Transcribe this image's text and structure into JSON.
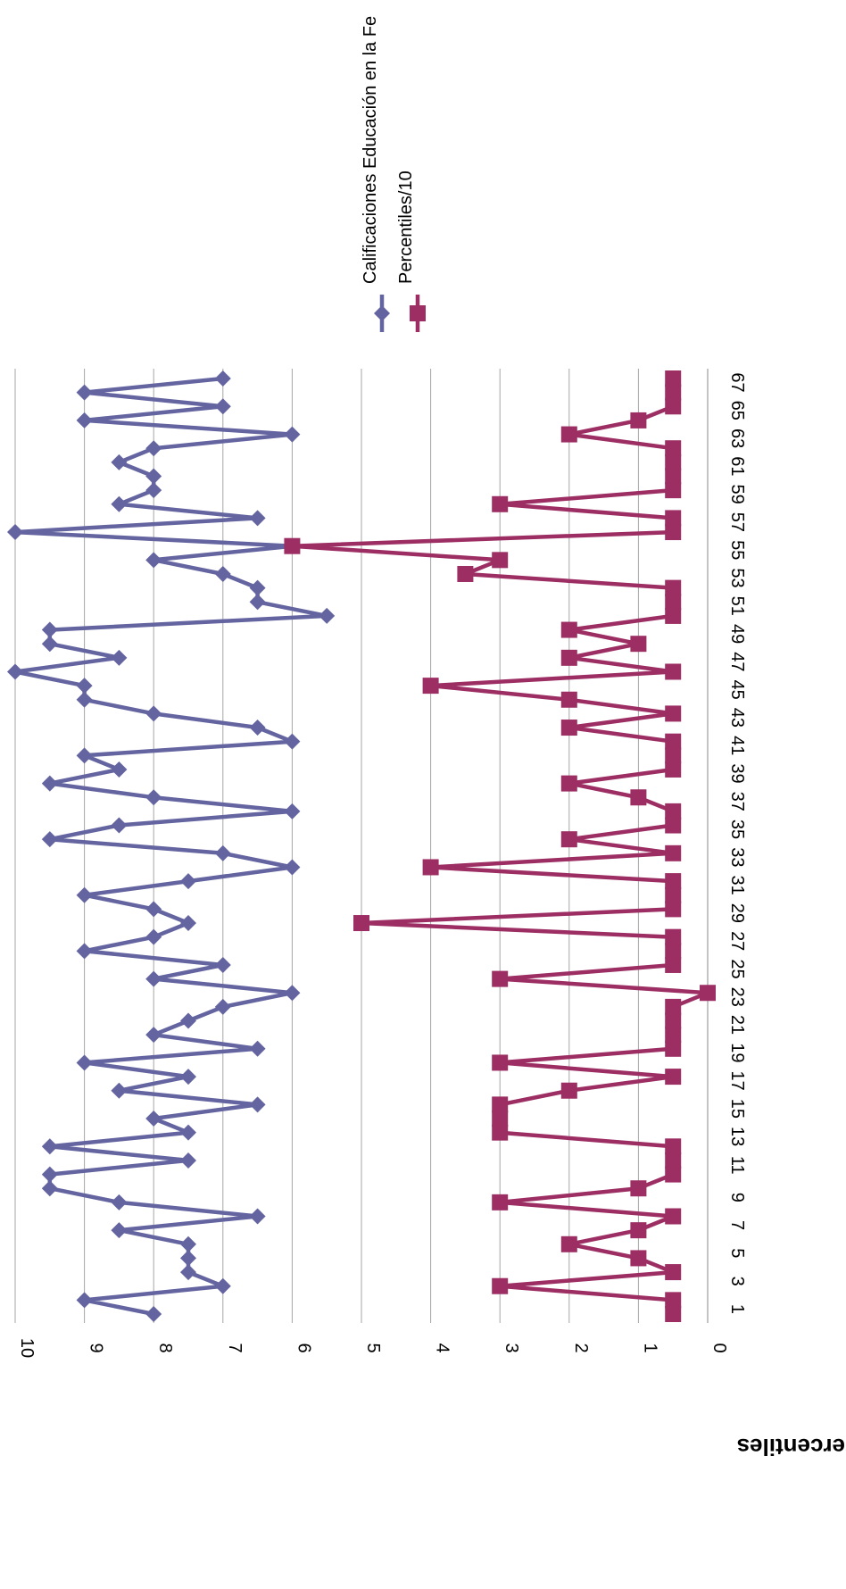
{
  "chart_data": {
    "type": "line",
    "orientation": "rotated-90-clockwise",
    "ylabel": "Percentiles",
    "xlabel": "",
    "ylim": [
      0,
      10
    ],
    "y_ticks": [
      "0",
      "1",
      "2",
      "3",
      "4",
      "5",
      "6",
      "7",
      "8",
      "9",
      "10"
    ],
    "x_ticks": [
      "1",
      "3",
      "5",
      "7",
      "9",
      "11",
      "13",
      "15",
      "17",
      "19",
      "21",
      "23",
      "25",
      "27",
      "29",
      "31",
      "33",
      "35",
      "37",
      "39",
      "41",
      "43",
      "45",
      "47",
      "49",
      "51",
      "53",
      "55",
      "57",
      "59",
      "61",
      "63",
      "65",
      "67"
    ],
    "grid": true,
    "legend_position": "top-right",
    "series": [
      {
        "name": "Calificaciones Educación en la Fe",
        "color": "#6464a0",
        "marker": "diamond",
        "values": [
          8,
          9,
          7,
          7.5,
          7.5,
          7.5,
          8.5,
          6.5,
          8.5,
          9.5,
          9.5,
          7.5,
          9.5,
          7.5,
          8,
          6.5,
          8.5,
          7.5,
          9,
          6.5,
          8,
          7.5,
          7,
          6,
          8,
          7,
          9,
          8,
          7.5,
          8,
          9,
          7.5,
          6,
          7,
          9.5,
          8.5,
          6,
          8,
          9.5,
          8.5,
          9,
          6,
          6.5,
          8,
          9,
          9,
          10,
          8.5,
          9.5,
          9.5,
          5.5,
          6.5,
          6.5,
          7,
          8,
          6,
          10,
          6.5,
          8.5,
          8,
          8,
          8.5,
          8,
          6,
          9,
          7,
          9,
          7
        ]
      },
      {
        "name": "Percentiles/10",
        "color": "#9c2e63",
        "marker": "square",
        "values": [
          0.5,
          0.5,
          3,
          0.5,
          1,
          2,
          1,
          0.5,
          3,
          1,
          0.5,
          0.5,
          0.5,
          3,
          3,
          3,
          2,
          0.5,
          3,
          0.5,
          0.5,
          0.5,
          0.5,
          0,
          3,
          0.5,
          0.5,
          0.5,
          5,
          0.5,
          0.5,
          0.5,
          4,
          0.5,
          2,
          0.5,
          0.5,
          1,
          2,
          0.5,
          0.5,
          0.5,
          2,
          0.5,
          2,
          4,
          0.5,
          2,
          1,
          2,
          0.5,
          0.5,
          0.5,
          3.5,
          3,
          6,
          0.5,
          0.5,
          3,
          0.5,
          0.5,
          0.5,
          0.5,
          2,
          1,
          0.5,
          0.5,
          0.5
        ]
      }
    ]
  }
}
